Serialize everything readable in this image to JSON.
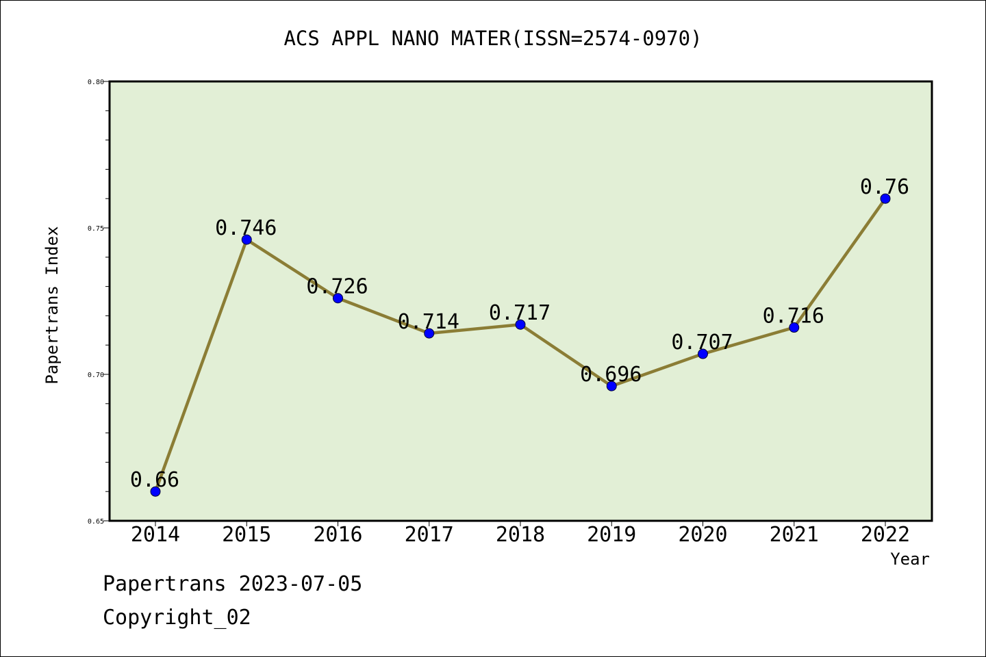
{
  "chart_data": {
    "type": "line",
    "title": "ACS APPL NANO MATER(ISSN=2574-0970)",
    "xlabel": "Year",
    "ylabel": "Papertrans Index",
    "categories": [
      "2014",
      "2015",
      "2016",
      "2017",
      "2018",
      "2019",
      "2020",
      "2021",
      "2022"
    ],
    "series": [
      {
        "values": [
          0.66,
          0.746,
          0.726,
          0.714,
          0.717,
          0.696,
          0.707,
          0.716,
          0.76
        ]
      }
    ],
    "data_labels": [
      "0.66",
      "0.746",
      "0.726",
      "0.714",
      "0.717",
      "0.696",
      "0.707",
      "0.716",
      "0.76"
    ],
    "ylim": [
      0.65,
      0.8
    ],
    "yticks": [
      0.65,
      0.7,
      0.75,
      0.8
    ],
    "ytick_labels": [
      "0.65",
      "0.70",
      "0.75",
      "0.80"
    ],
    "y_minor_step": 0.01,
    "grid": false,
    "legend": "none",
    "colors": {
      "plot_background": "#e2efd6",
      "line": "#8b7d35",
      "marker_fill": "#0000ff",
      "marker_edge": "#000033"
    }
  },
  "footer": {
    "date_text": "Papertrans 2023-07-05",
    "copyright_text": "Copyright_02"
  }
}
